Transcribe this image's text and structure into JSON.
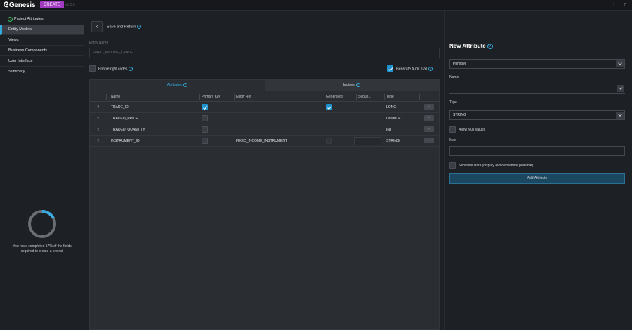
{
  "app": {
    "brand": "Genesis",
    "badge": "CREATE",
    "version": "v1.0.0"
  },
  "topbar": {
    "menu_icon": "vertical-dots-icon",
    "theme_icon": "moon-icon"
  },
  "sidebar": {
    "items": [
      {
        "label": "Project Attributes",
        "state": "done"
      },
      {
        "label": "Entity Models",
        "state": "active"
      },
      {
        "label": "Views",
        "state": ""
      },
      {
        "label": "Business Components",
        "state": ""
      },
      {
        "label": "User Interface",
        "state": ""
      },
      {
        "label": "Summary",
        "state": ""
      }
    ],
    "progress": {
      "percent": 17,
      "text": "You have completed 17% of the fields required to create a project"
    }
  },
  "main": {
    "save_return": "Save and Return",
    "entity_name_label": "Entity Name",
    "entity_name_value": "FIXED_INCOME_TRADE",
    "enable_right_codes": "Enable right codes",
    "generate_audit_trail": "Generate Audit Trail",
    "enable_right_codes_checked": false,
    "generate_audit_trail_checked": true,
    "tabs": [
      {
        "label": "Attributes",
        "active": true
      },
      {
        "label": "Indices",
        "active": false
      }
    ],
    "columns": {
      "name": "Name",
      "primary_key": "Primary Key",
      "entity_ref": "Entity Ref",
      "generated": "Generated",
      "sequence": "Seque...",
      "type": "Type"
    },
    "rows": [
      {
        "name": "TRADE_ID",
        "primary_key": true,
        "entity_ref": "",
        "generated": true,
        "generated_visible": true,
        "type": "LONG"
      },
      {
        "name": "TRADED_PRICE",
        "primary_key": false,
        "entity_ref": "",
        "generated": false,
        "generated_visible": false,
        "type": "DOUBLE"
      },
      {
        "name": "TRADED_QUANTITY",
        "primary_key": false,
        "entity_ref": "",
        "generated": false,
        "generated_visible": false,
        "type": "INT"
      },
      {
        "name": "INSTRUMENT_ID",
        "primary_key": false,
        "entity_ref": "FIXED_INCOME_INSTRUMENT",
        "generated": false,
        "generated_visible": true,
        "type": "STRING"
      }
    ],
    "more_label": "..."
  },
  "panel": {
    "title": "New Attribute",
    "kind_value": "Primitive",
    "name_label": "Name",
    "name_value": "",
    "type_label": "Type",
    "type_value": "STRING",
    "allow_null": "Allow Null Values",
    "max_label": "Max",
    "sensitive": "Sensitive Data (display avoided where possible)",
    "add_button": "Add Attribute"
  }
}
